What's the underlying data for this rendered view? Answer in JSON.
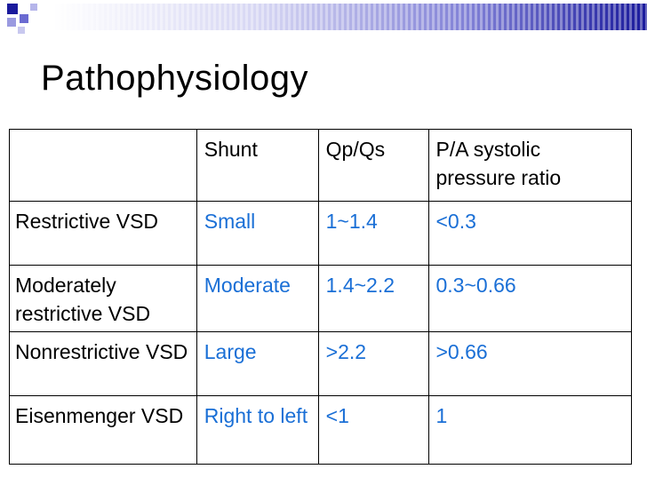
{
  "slide": {
    "title": "Pathophysiology"
  },
  "table": {
    "headers": [
      "",
      "Shunt",
      "Qp/Qs",
      "P/A systolic pressure ratio"
    ],
    "rows": [
      [
        "Restrictive VSD",
        "Small",
        "1~1.4",
        "<0.3"
      ],
      [
        "Moderately restrictive VSD",
        "Moderate",
        "1.4~2.2",
        "0.3~0.66"
      ],
      [
        "Nonrestrictive VSD",
        "Large",
        ">2.2",
        ">0.66"
      ],
      [
        "Eisenmenger VSD",
        "Right to left",
        "<1",
        "1"
      ]
    ]
  },
  "colors": {
    "accent_blue": "#1a6fd6",
    "band_dark": "#1a1a9c",
    "band_light": "#ffffff"
  }
}
